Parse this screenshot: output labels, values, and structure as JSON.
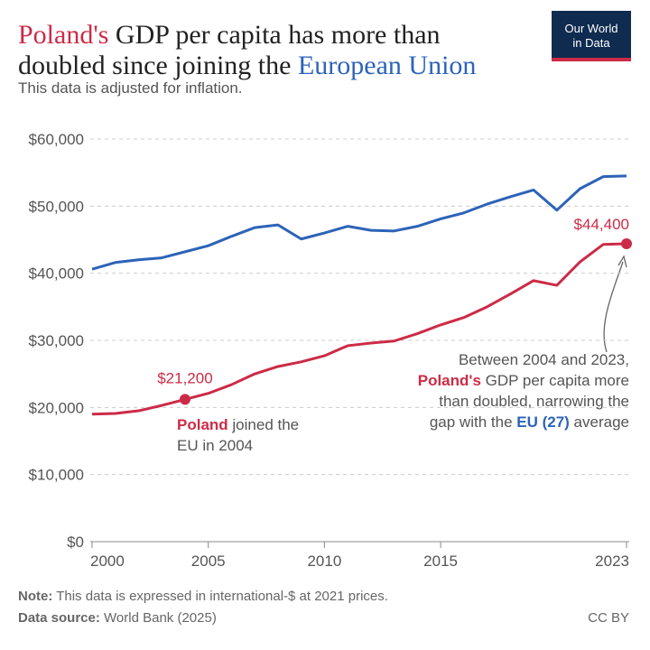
{
  "header": {
    "logo": [
      "Our World",
      "in Data"
    ]
  },
  "chart_data": {
    "type": "line",
    "title": [
      [
        {
          "text": "Poland's",
          "color": "#cc2b47"
        },
        {
          "text": " GDP per capita has more than"
        }
      ],
      [
        {
          "text": "doubled since joining the "
        },
        {
          "text": "European Union",
          "color": "#2d63b8"
        }
      ]
    ],
    "subtitle": "This data is adjusted for inflation.",
    "x": [
      2000,
      2001,
      2002,
      2003,
      2004,
      2005,
      2006,
      2007,
      2008,
      2009,
      2010,
      2011,
      2012,
      2013,
      2014,
      2015,
      2016,
      2017,
      2018,
      2019,
      2020,
      2021,
      2022,
      2023
    ],
    "xlim": [
      2000,
      2023
    ],
    "xticks": [
      2000,
      2005,
      2010,
      2015,
      2023
    ],
    "ylim": [
      0,
      60000
    ],
    "yticks": [
      {
        "value": 0,
        "label": "$0"
      },
      {
        "value": 10000,
        "label": "$10,000"
      },
      {
        "value": 20000,
        "label": "$20,000"
      },
      {
        "value": 30000,
        "label": "$30,000"
      },
      {
        "value": 40000,
        "label": "$40,000"
      },
      {
        "value": 50000,
        "label": "$50,000"
      },
      {
        "value": 60000,
        "label": "$60,000"
      }
    ],
    "grid": true,
    "series": [
      {
        "color": "#cc2b47",
        "values": [
          19000,
          19100,
          19500,
          20300,
          21200,
          22100,
          23400,
          25000,
          26100,
          26800,
          27700,
          29200,
          29600,
          29900,
          31000,
          32300,
          33400,
          35000,
          36900,
          38900,
          38200,
          41700,
          44300,
          44400
        ],
        "value_labels": [
          null,
          null,
          null,
          null,
          "$21,200",
          null,
          null,
          null,
          null,
          null,
          null,
          null,
          null,
          null,
          null,
          null,
          null,
          null,
          null,
          null,
          null,
          null,
          null,
          "$44,400"
        ]
      },
      {
        "color": "#2d63b8",
        "values": [
          40600,
          41600,
          42000,
          42300,
          43200,
          44100,
          45500,
          46800,
          47200,
          45100,
          46000,
          47000,
          46400,
          46300,
          47000,
          48100,
          49000,
          50300,
          51400,
          52400,
          49400,
          52600,
          54400,
          54500
        ]
      }
    ],
    "annotations": [
      [
        [
          {
            "text": "Poland",
            "color": "#cc2b47",
            "bold": true
          },
          {
            "text": " joined the"
          }
        ],
        [
          {
            "text": "EU in 2004"
          }
        ]
      ],
      [
        [
          {
            "text": "Between 2004 and 2023,"
          }
        ],
        [
          {
            "text": "Poland's",
            "color": "#cc2b47",
            "bold": true
          },
          {
            "text": " GDP per capita more"
          }
        ],
        [
          {
            "text": "than doubled, narrowing the"
          }
        ],
        [
          {
            "text": "gap with the "
          },
          {
            "text": "EU (27)",
            "color": "#2d63b8",
            "bold": true
          },
          {
            "text": " average"
          }
        ]
      ]
    ]
  },
  "footer": {
    "note": [
      {
        "text": "Note:",
        "bold": true
      },
      {
        "text": " This data is expressed in international-$ at 2021 prices."
      }
    ],
    "source": [
      {
        "text": "Data source:",
        "bold": true
      },
      {
        "text": " World Bank (2025)"
      }
    ],
    "license": "CC BY"
  }
}
